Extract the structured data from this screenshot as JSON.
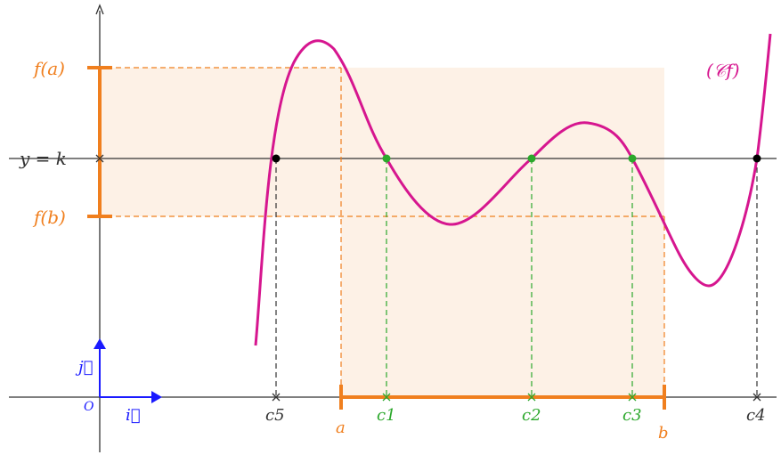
{
  "labels": {
    "fa": "f(a)",
    "fb": "f(b)",
    "yk": "y = k",
    "cf": "(𝒞f)",
    "origin": "O",
    "i": "i⃗",
    "j": "j⃗",
    "a": "a",
    "b": "b",
    "c1": "c1",
    "c2": "c2",
    "c3": "c3",
    "c4": "c4",
    "c5": "c5"
  },
  "colors": {
    "orange": "#f07f1e",
    "orange_fill": "#fdf1e6",
    "green": "#2ca82c",
    "magenta": "#d6168f",
    "blue": "#1a1aff",
    "axis": "#333333"
  }
}
